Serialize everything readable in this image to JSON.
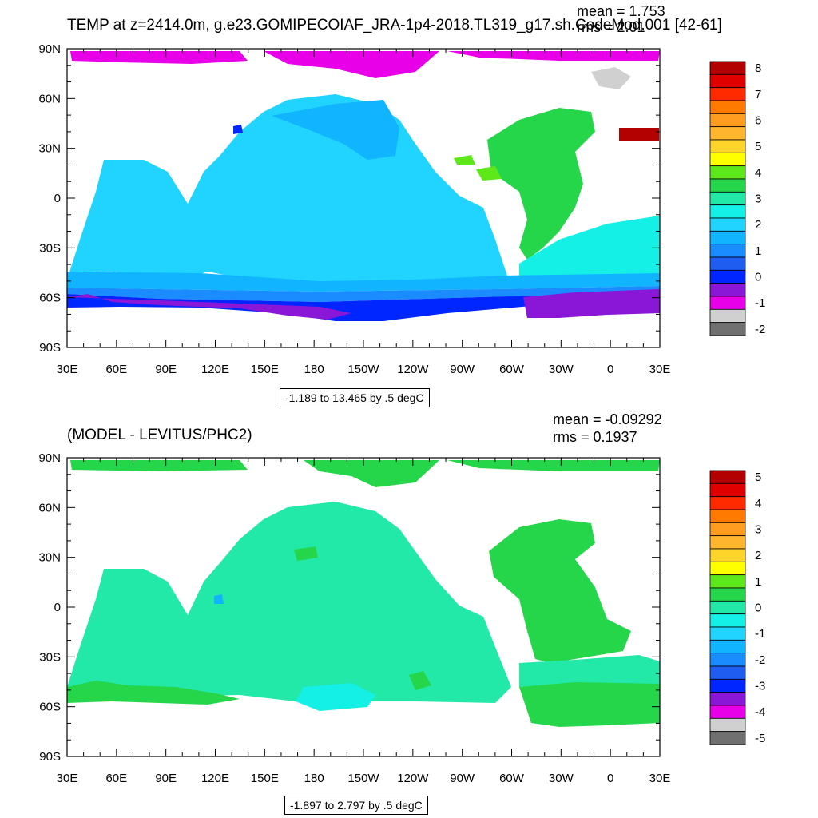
{
  "top_panel": {
    "title": "TEMP at z=2414.0m, g.e23.GOMIPECOIAF_JRA-1p4-2018.TL319_g17.sh.CodeMod.001 [42-61]",
    "mean_text": "mean = 1.753",
    "rms_text": "rms = 2.01",
    "range_text": "-1.189 to 13.465 by .5 degC",
    "colorbar": {
      "labels": [
        "8",
        "7",
        "6",
        "5",
        "4",
        "3",
        "2",
        "1",
        "0",
        "-1",
        "-2"
      ],
      "colors": [
        "#b30000",
        "#e00000",
        "#ff2a00",
        "#ff7a00",
        "#ff9d20",
        "#ffb52e",
        "#ffd42a",
        "#ffff00",
        "#5ee81a",
        "#26d64a",
        "#22e8a8",
        "#14f0e6",
        "#20d4ff",
        "#10b4ff",
        "#1a8cff",
        "#1f5cf0",
        "#0026ff",
        "#8a16d8",
        "#e800e8",
        "#d0d0d0",
        "#707070"
      ]
    }
  },
  "bottom_panel": {
    "title": "(MODEL - LEVITUS/PHC2)",
    "mean_text": "mean = -0.09292",
    "rms_text": "rms = 0.1937",
    "range_text": "-1.897 to 2.797 by .5 degC",
    "colorbar": {
      "labels": [
        "5",
        "4",
        "3",
        "2",
        "1",
        "0",
        "-1",
        "-2",
        "-3",
        "-4",
        "-5"
      ],
      "colors": [
        "#b30000",
        "#e00000",
        "#ff2a00",
        "#ff7a00",
        "#ff9d20",
        "#ffb52e",
        "#ffd42a",
        "#ffff00",
        "#5ee81a",
        "#26d64a",
        "#22e8a8",
        "#14f0e6",
        "#20d4ff",
        "#10b4ff",
        "#1a8cff",
        "#1f5cf0",
        "#0026ff",
        "#8a16d8",
        "#e800e8",
        "#d0d0d0",
        "#707070"
      ]
    }
  },
  "axes": {
    "lat_labels": [
      "90N",
      "60N",
      "30N",
      "0",
      "30S",
      "60S",
      "90S"
    ],
    "lon_labels": [
      "30E",
      "60E",
      "90E",
      "120E",
      "150E",
      "180",
      "150W",
      "120W",
      "90W",
      "60W",
      "30W",
      "0",
      "30E"
    ]
  }
}
